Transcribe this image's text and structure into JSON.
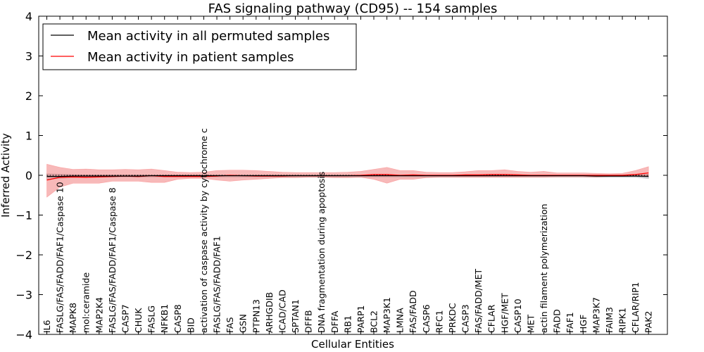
{
  "chart_data": {
    "type": "line",
    "title": "FAS signaling pathway (CD95) -- 154 samples",
    "xlabel": "Cellular Entities",
    "ylabel": "Inferred Activity",
    "ylim": [
      -4,
      4
    ],
    "yticks": [
      "−4",
      "−3",
      "−2",
      "−1",
      "0",
      "1",
      "2",
      "3",
      "4"
    ],
    "ytick_values": [
      -4,
      -3,
      -2,
      -1,
      0,
      1,
      2,
      3,
      4
    ],
    "legend_position": "top-left",
    "categories": [
      "IL6",
      "FASLG/FAS/FADD/FAF1/Caspase 10",
      "MAPK8",
      "mol:ceramide",
      "MAP2K4",
      "FASLG/FAS/FADD/FAF1/Caspase 8",
      "CASP7",
      "CHUK",
      "FASLG",
      "NFKB1",
      "CASP8",
      "BID",
      "activation of caspase activity by cytochrome c",
      "FASLG/FAS/FADD/FAF1",
      "FAS",
      "GSN",
      "PTPN13",
      "ARHGDIB",
      "ICAD/CAD",
      "SPTAN1",
      "DFFB",
      "DNA fragmentation during apoptosis",
      "DFFA",
      "RB1",
      "PARP1",
      "BCL2",
      "MAP3K1",
      "LMNA",
      "FAS/FADD",
      "CASP6",
      "RFC1",
      "PRKDC",
      "CASP3",
      "FAS/FADD/MET",
      "CFLAR",
      "HGF/MET",
      "CASP10",
      "MET",
      "actin filament polymerization",
      "FADD",
      "FAF1",
      "HGF",
      "MAP3K7",
      "FAIM3",
      "RIPK1",
      "CFLAR/RIP1",
      "PAK2"
    ],
    "series": [
      {
        "name": "Mean activity in all permuted samples",
        "color": "#000000",
        "band_color": "#c8c8d2",
        "values": [
          -0.03,
          -0.03,
          -0.02,
          -0.02,
          -0.02,
          -0.02,
          -0.02,
          -0.02,
          -0.01,
          -0.01,
          -0.01,
          -0.01,
          -0.01,
          -0.01,
          -0.01,
          -0.01,
          -0.01,
          -0.01,
          -0.01,
          -0.01,
          -0.01,
          -0.01,
          -0.01,
          -0.01,
          -0.01,
          -0.01,
          -0.01,
          -0.01,
          -0.01,
          -0.01,
          -0.01,
          -0.01,
          -0.01,
          -0.01,
          -0.01,
          -0.01,
          -0.01,
          -0.01,
          -0.01,
          -0.01,
          -0.01,
          -0.01,
          -0.02,
          -0.02,
          -0.02,
          -0.02,
          -0.03
        ],
        "lower": [
          -0.1,
          -0.08,
          -0.06,
          -0.05,
          -0.05,
          -0.05,
          -0.05,
          -0.05,
          -0.04,
          -0.04,
          -0.04,
          -0.04,
          -0.04,
          -0.04,
          -0.04,
          -0.04,
          -0.04,
          -0.04,
          -0.04,
          -0.04,
          -0.04,
          -0.04,
          -0.04,
          -0.04,
          -0.04,
          -0.04,
          -0.04,
          -0.04,
          -0.04,
          -0.04,
          -0.04,
          -0.04,
          -0.04,
          -0.04,
          -0.04,
          -0.04,
          -0.04,
          -0.04,
          -0.04,
          -0.04,
          -0.04,
          -0.04,
          -0.05,
          -0.05,
          -0.05,
          -0.05,
          -0.08
        ],
        "upper": [
          0.04,
          0.03,
          0.02,
          0.01,
          0.01,
          0.01,
          0.01,
          0.01,
          0.01,
          0.01,
          0.01,
          0.01,
          0.01,
          0.01,
          0.01,
          0.01,
          0.01,
          0.01,
          0.01,
          0.01,
          0.01,
          0.01,
          0.01,
          0.01,
          0.01,
          0.01,
          0.01,
          0.01,
          0.01,
          0.01,
          0.01,
          0.01,
          0.01,
          0.01,
          0.01,
          0.01,
          0.01,
          0.01,
          0.01,
          0.01,
          0.01,
          0.01,
          0.01,
          0.01,
          0.01,
          0.01,
          0.02
        ]
      },
      {
        "name": "Mean activity in patient samples",
        "color": "#ff0000",
        "band_color": "#f08080",
        "values": [
          -0.12,
          -0.05,
          -0.04,
          -0.05,
          -0.04,
          -0.03,
          -0.02,
          -0.03,
          -0.01,
          -0.03,
          -0.03,
          -0.03,
          -0.03,
          -0.02,
          0.0,
          -0.01,
          -0.02,
          -0.02,
          -0.02,
          -0.01,
          -0.01,
          -0.01,
          -0.01,
          -0.01,
          0.0,
          0.02,
          0.02,
          0.0,
          0.01,
          0.0,
          0.0,
          0.0,
          0.01,
          0.01,
          0.02,
          0.02,
          0.01,
          0.0,
          0.0,
          0.0,
          0.0,
          0.0,
          0.0,
          0.0,
          0.0,
          0.02,
          0.06
        ],
        "lower": [
          -0.55,
          -0.3,
          -0.2,
          -0.2,
          -0.2,
          -0.15,
          -0.15,
          -0.15,
          -0.18,
          -0.18,
          -0.1,
          -0.08,
          -0.08,
          -0.12,
          -0.15,
          -0.12,
          -0.1,
          -0.08,
          -0.06,
          -0.06,
          -0.05,
          -0.05,
          -0.06,
          -0.06,
          -0.05,
          -0.1,
          -0.2,
          -0.1,
          -0.1,
          -0.06,
          -0.05,
          -0.05,
          -0.05,
          -0.05,
          -0.05,
          -0.05,
          -0.05,
          -0.05,
          -0.05,
          -0.04,
          -0.04,
          -0.04,
          -0.04,
          -0.03,
          -0.03,
          -0.02,
          -0.02
        ],
        "upper": [
          0.28,
          0.2,
          0.15,
          0.16,
          0.14,
          0.14,
          0.15,
          0.14,
          0.16,
          0.12,
          0.08,
          0.07,
          0.08,
          0.12,
          0.13,
          0.13,
          0.12,
          0.1,
          0.08,
          0.07,
          0.07,
          0.07,
          0.07,
          0.08,
          0.1,
          0.15,
          0.2,
          0.12,
          0.12,
          0.08,
          0.07,
          0.07,
          0.09,
          0.12,
          0.12,
          0.14,
          0.1,
          0.08,
          0.1,
          0.06,
          0.06,
          0.06,
          0.05,
          0.04,
          0.05,
          0.12,
          0.22
        ]
      }
    ]
  }
}
